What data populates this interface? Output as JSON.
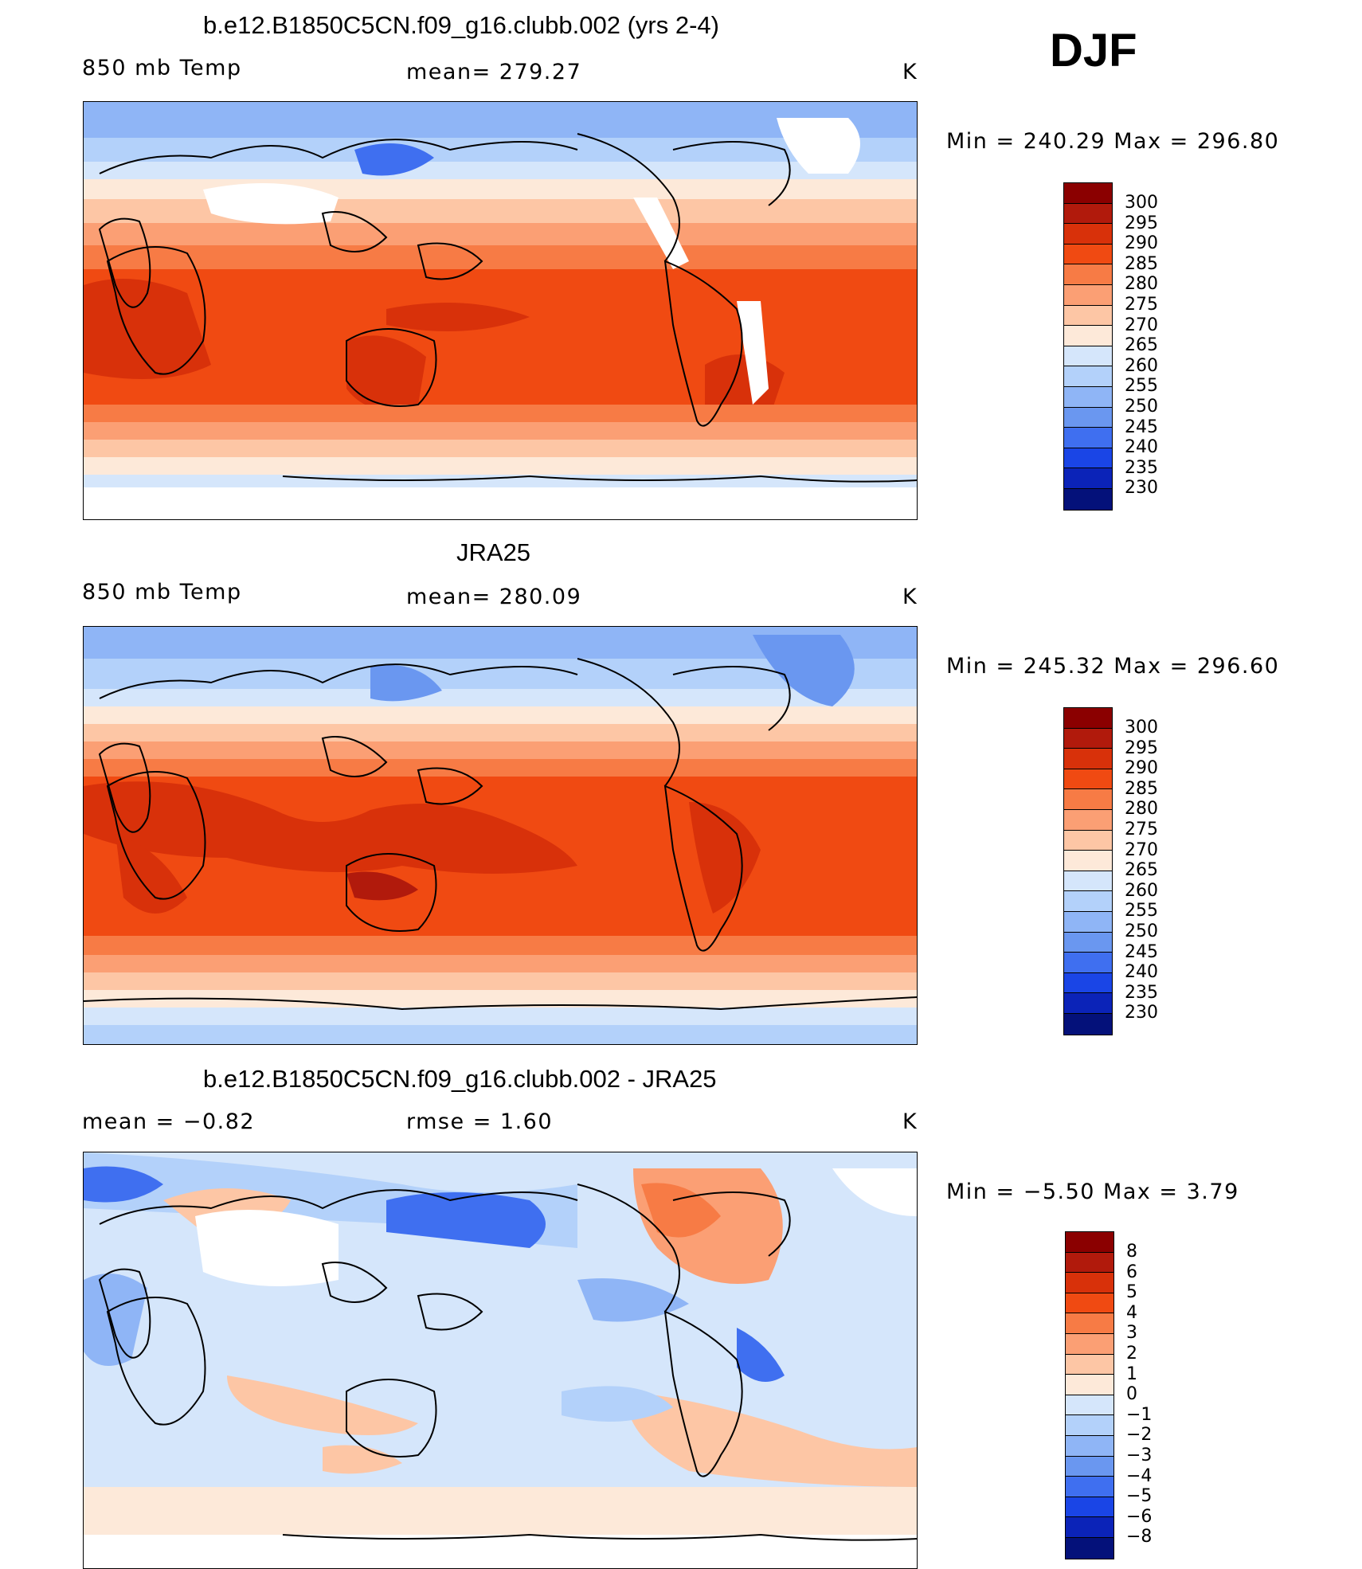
{
  "season": "DJF",
  "unit": "K",
  "panels": [
    {
      "title": "b.e12.B1850C5CN.f09_g16.clubb.002 (yrs 2-4)",
      "variable": "850 mb Temp",
      "stat": "mean=  279.27",
      "unit": "K",
      "range": "Min  =  240.29  Max  =  296.80",
      "levels": [
        "300",
        "295",
        "290",
        "285",
        "280",
        "275",
        "270",
        "265",
        "260",
        "255",
        "250",
        "245",
        "240",
        "235",
        "230"
      ],
      "colors": [
        "#8b0000",
        "#b11a0c",
        "#d8310a",
        "#f04a12",
        "#f77b45",
        "#fb9f74",
        "#fdc6a5",
        "#fde9d9",
        "#d5e6fb",
        "#b3d1fa",
        "#8fb5f6",
        "#6a97f0",
        "#3f6ff0",
        "#1a45e6",
        "#0b23b8",
        "#04117a"
      ]
    },
    {
      "title": "JRA25",
      "variable": "850 mb Temp",
      "stat": "mean=  280.09",
      "unit": "K",
      "range": "Min  =  245.32  Max  =  296.60",
      "levels": [
        "300",
        "295",
        "290",
        "285",
        "280",
        "275",
        "270",
        "265",
        "260",
        "255",
        "250",
        "245",
        "240",
        "235",
        "230"
      ],
      "colors": [
        "#8b0000",
        "#b11a0c",
        "#d8310a",
        "#f04a12",
        "#f77b45",
        "#fb9f74",
        "#fdc6a5",
        "#fde9d9",
        "#d5e6fb",
        "#b3d1fa",
        "#8fb5f6",
        "#6a97f0",
        "#3f6ff0",
        "#1a45e6",
        "#0b23b8",
        "#04117a"
      ]
    },
    {
      "title": "b.e12.B1850C5CN.f09_g16.clubb.002 - JRA25",
      "variable": "mean =    −0.82",
      "stat": "rmse =     1.60",
      "unit": "K",
      "range": "Min  =   −5.50  Max  =     3.79",
      "levels": [
        "8",
        "6",
        "5",
        "4",
        "3",
        "2",
        "1",
        "0",
        "−1",
        "−2",
        "−3",
        "−4",
        "−5",
        "−6",
        "−8"
      ],
      "colors": [
        "#8b0000",
        "#b11a0c",
        "#d8310a",
        "#f04a12",
        "#f77b45",
        "#fb9f74",
        "#fdc6a5",
        "#fde9d9",
        "#d5e6fb",
        "#b3d1fa",
        "#8fb5f6",
        "#6a97f0",
        "#3f6ff0",
        "#1a45e6",
        "#0b23b8",
        "#04117a"
      ]
    }
  ]
}
